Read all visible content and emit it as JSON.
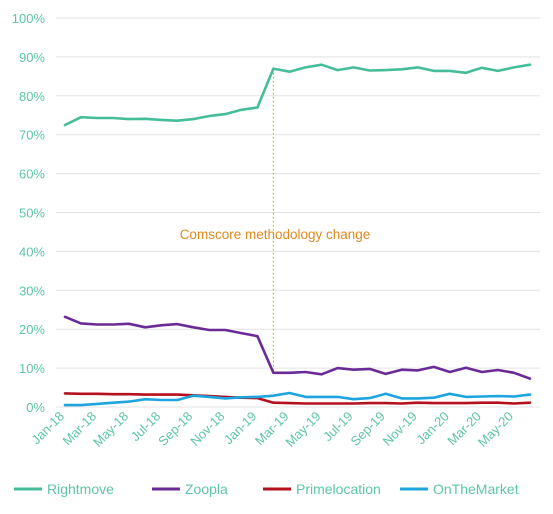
{
  "chart_data": {
    "type": "line",
    "title": "",
    "xlabel": "",
    "ylabel": "",
    "ylim": [
      0,
      100
    ],
    "yticks": [
      0,
      10,
      20,
      30,
      40,
      50,
      60,
      70,
      80,
      90,
      100
    ],
    "ytick_suffix": "%",
    "grid": "horizontal",
    "legend_position": "bottom",
    "x_tick_every": 2,
    "categories": [
      "Jan-18",
      "Feb-18",
      "Mar-18",
      "Apr-18",
      "May-18",
      "Jun-18",
      "Jul-18",
      "Aug-18",
      "Sep-18",
      "Oct-18",
      "Nov-18",
      "Dec-18",
      "Jan-19",
      "Feb-19",
      "Mar-19",
      "Apr-19",
      "May-19",
      "Jun-19",
      "Jul-19",
      "Aug-19",
      "Sep-19",
      "Oct-19",
      "Nov-19",
      "Dec-19",
      "Jan-20",
      "Feb-20",
      "Mar-20",
      "Apr-20",
      "May-20",
      "Jun-20"
    ],
    "series": [
      {
        "name": "Rightmove",
        "color": "#46bd9a",
        "values": [
          72.5,
          74.5,
          74.3,
          74.3,
          74.0,
          74.1,
          73.8,
          73.6,
          74.0,
          74.8,
          75.3,
          76.4,
          77.0,
          87.0,
          86.2,
          87.3,
          88.0,
          86.6,
          87.3,
          86.5,
          86.6,
          86.8,
          87.3,
          86.4,
          86.4,
          85.9,
          87.2,
          86.4,
          87.3,
          88.0
        ]
      },
      {
        "name": "Zoopla",
        "color": "#6a2b96",
        "values": [
          23.2,
          21.5,
          21.2,
          21.2,
          21.4,
          20.5,
          21.0,
          21.3,
          20.5,
          19.8,
          19.8,
          19.0,
          18.2,
          8.8,
          8.8,
          9.0,
          8.4,
          10.0,
          9.6,
          9.8,
          8.5,
          9.6,
          9.4,
          10.3,
          9.0,
          10.1,
          9.0,
          9.5,
          8.8,
          7.3
        ]
      },
      {
        "name": "Primelocation",
        "color": "#b4101e",
        "values": [
          3.5,
          3.4,
          3.4,
          3.3,
          3.3,
          3.2,
          3.2,
          3.2,
          3.0,
          2.8,
          2.6,
          2.4,
          2.3,
          1.1,
          1.0,
          0.9,
          0.9,
          0.9,
          0.9,
          1.0,
          1.0,
          0.9,
          1.1,
          1.0,
          1.0,
          1.0,
          1.1,
          1.1,
          0.9,
          1.1
        ]
      },
      {
        "name": "OnTheMarket",
        "color": "#1ea4de",
        "values": [
          0.5,
          0.5,
          0.8,
          1.1,
          1.4,
          2.0,
          1.8,
          1.8,
          2.9,
          2.6,
          2.2,
          2.5,
          2.6,
          2.9,
          3.6,
          2.6,
          2.6,
          2.6,
          2.0,
          2.3,
          3.4,
          2.2,
          2.2,
          2.4,
          3.4,
          2.6,
          2.7,
          2.8,
          2.7,
          3.2
        ]
      }
    ],
    "annotations": [
      {
        "text": "Comscore methodology change",
        "x": "Feb-19",
        "color": "#e08a1e",
        "line_color": "#d8c200"
      }
    ]
  }
}
